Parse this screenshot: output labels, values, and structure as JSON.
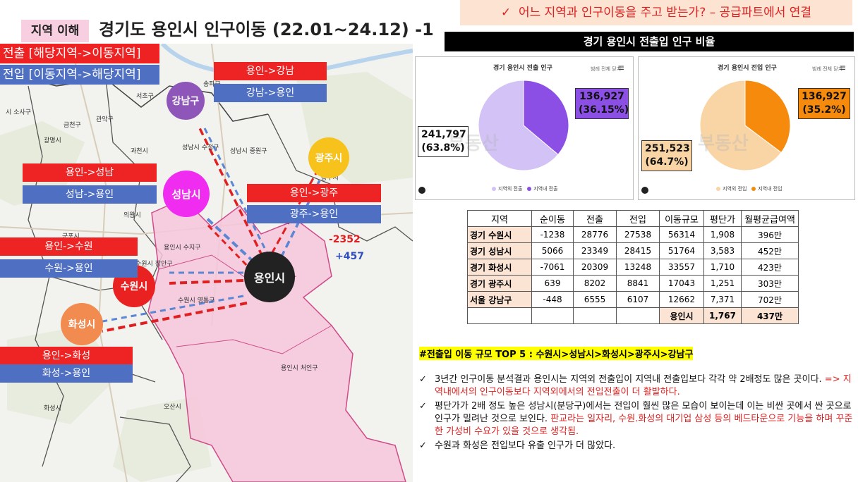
{
  "header": {
    "tag": "지역 이해",
    "title": "경기도 용인시 인구이동 (22.01~24.12) -1",
    "banner_check": "✓",
    "banner_text": "어느 지역과 인구이동을 주고 받는가? – 공급파트에서 연결",
    "section_title": "경기 용인시 전출입 인구 비율"
  },
  "map": {
    "legend_out": "전출 [해당지역->이동지역]",
    "legend_in": "전입 [이동지역->해당지역]",
    "cities": {
      "gangnam": "강남구",
      "gwangju": "광주시",
      "seongnam": "성남시",
      "yongin": "용인시",
      "suwon": "수원시",
      "hwaseong": "화성시"
    },
    "flows": {
      "gangnam_out": "용인->강남",
      "gangnam_in": "강남->용인",
      "seongnam_out": "용인->성남",
      "seongnam_in": "성남->용인",
      "gwangju_out": "용인->광주",
      "gwangju_in": "광주->용인",
      "suwon_out": "용인->수원",
      "suwon_in": "수원->용인",
      "hwaseong_out": "용인->화성",
      "hwaseong_in": "화성->용인"
    },
    "net_out": "-2352",
    "net_in": "+457",
    "place_labels": {
      "l1": "서초구",
      "l2": "송파구",
      "l3": "관악구",
      "l4": "금천구",
      "l5": "광명시",
      "l6": "과천시",
      "l7": "성남시 수정구",
      "l8": "성남시 중원구",
      "l9": "의왕시",
      "l10": "군포시",
      "l11": "용인시 수지구",
      "l12": "수원시 장안구",
      "l13": "수원시 영통구",
      "l14": "용인시 처인구",
      "l15": "오산시",
      "l16": "화성시",
      "l17": "시 소사구",
      "l18": "광주시"
    }
  },
  "pies": {
    "out": {
      "title": "경기 용인시 전출 인구",
      "menu": "범례 전체 닫기",
      "label_big": "241,797\n(63.8%)",
      "label_small": "136,927\n(36.15%)",
      "legend_a": "지역외 전출",
      "legend_b": "지역내 전출",
      "color_a": "#d2c2f5",
      "color_b": "#8c4fe6"
    },
    "in": {
      "title": "경기 용인시 전입 인구",
      "menu": "범례 전체 닫기",
      "label_big": "251,523\n(64.7%)",
      "label_small": "136,927\n(35.2%)",
      "legend_a": "지역외 전입",
      "legend_b": "지역내 전입",
      "color_a": "#f9d5a6",
      "color_b": "#f58a0c"
    }
  },
  "chart_data": [
    {
      "type": "pie",
      "title": "경기 용인시 전출 인구",
      "categories": [
        "지역외 전출",
        "지역내 전출"
      ],
      "values": [
        241797,
        136927
      ],
      "percents": [
        63.8,
        36.15
      ]
    },
    {
      "type": "pie",
      "title": "경기 용인시 전입 인구",
      "categories": [
        "지역외 전입",
        "지역내 전입"
      ],
      "values": [
        251523,
        136927
      ],
      "percents": [
        64.7,
        35.2
      ]
    }
  ],
  "table": {
    "headers": [
      "지역",
      "순이동",
      "전출",
      "전입",
      "이동규모",
      "평단가",
      "월평균급여액"
    ],
    "rows": [
      [
        "경기 수원시",
        "-1238",
        "28776",
        "27538",
        "56314",
        "1,908",
        "396만"
      ],
      [
        "경기 성남시",
        "5066",
        "23349",
        "28415",
        "51764",
        "3,583",
        "452만"
      ],
      [
        "경기 화성시",
        "-7061",
        "20309",
        "13248",
        "33557",
        "1,710",
        "423만"
      ],
      [
        "경기 광주시",
        "639",
        "8202",
        "8841",
        "17043",
        "1,251",
        "303만"
      ],
      [
        "서울 강남구",
        "-448",
        "6555",
        "6107",
        "12662",
        "7,371",
        "702만"
      ]
    ],
    "summary": [
      "용인시",
      "1,767",
      "437만"
    ]
  },
  "text": {
    "top5": "#전출입 이동 규모 TOP 5 : 수원시>성남시>화성시>광주시>강남구",
    "check": "✓",
    "b1_a": "3년간 인구이동 분석결과 용인시는 지역외 전출입이 지역내 전출입보다 각각 약 2배정도 많은 곳이다. ",
    "b1_b": "=> 지역내에서의 인구이동보다 지역외에서의 전입전출이 더 활발하다.",
    "b2_a": "평단가가 2배 정도 높은 성남시(분당구)에서는 전입이 훨씬 많은 모습이 보이는데 이는 비싼 곳에서 싼 곳으로 인구가 밀려난 것으로 보인다. ",
    "b2_b": "판교라는 일자리, 수원.화성의 대기업 삼성 등의 베드타운으로 기능을 하며 꾸준한 가성비 수요가 있을 것으로 생각됨.",
    "b3": "수원과 화성은 전입보다 유출 인구가 더 많았다."
  }
}
